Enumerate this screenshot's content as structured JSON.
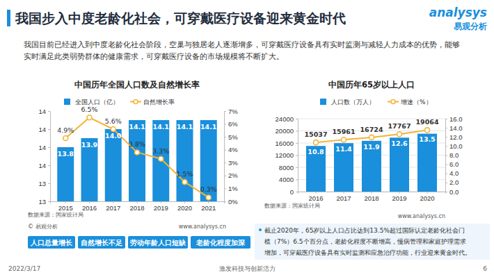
{
  "page": {
    "title": "我国步入中度老龄化社会，可穿戴医疗设备迎来黄金时代",
    "logo_en": "analysys",
    "logo_cn": "易观分析",
    "intro": [
      "我国目前已经进入到中度老龄化社会阶段，空巢与独居老人逐渐增多，可穿戴医疗设备具有实时监测与减轻人力成本的优势，能够",
      "实时满足此类弱势群体的健康需求，可穿戴医疗设备的市场规模将不断扩大。"
    ],
    "tags": [
      "人口总量增长",
      "自然增长不足",
      "劳动年龄人口短缺",
      "老龄化程度加深"
    ],
    "note": [
      "截止2020年，65岁以上人口占比达到13.5%超过国际认定老龄化社会门",
      "槛（7%）6.5个百分点，老龄化程度不断增高，慢病管理和家庭护理需求",
      "增加，可穿戴医疗设备具有实时监测和应急治疗功能，行业迎来黄金时代。"
    ],
    "footer_date": "2022/3/17",
    "footer_slogan": "激发科技与创新活力",
    "page_number": "6"
  },
  "chart_data": [
    {
      "type": "bar",
      "title": "中国历年全国人口数及自然增长率",
      "categories": [
        "2015",
        "2016",
        "2017",
        "2018",
        "2019",
        "2020",
        "2021"
      ],
      "series": [
        {
          "name": "全国人口（亿）",
          "type": "bar",
          "color": "#1a8fdc",
          "values": [
            13.8,
            13.9,
            14,
            14.1,
            14.1,
            14.1,
            14.1
          ],
          "value_labels": [
            "13.8",
            "13.9",
            "14.0",
            "14.1",
            "14.1",
            "14.1",
            "14.1"
          ]
        },
        {
          "name": "自然增长率",
          "type": "line",
          "axis": "y2",
          "color": "#f5b335",
          "marker": "circle",
          "values": [
            4.9,
            6.5,
            5.6,
            3.8,
            3.3,
            1.5,
            0.3
          ],
          "value_labels": [
            "4.9%",
            "6.5%",
            "5.6%",
            "3.8%",
            "3.3%",
            "1.5%",
            "0.3%"
          ]
        }
      ],
      "ylim": [
        13.2,
        14.2
      ],
      "yticks": [
        {
          "value": 13.2,
          "label": "13"
        },
        {
          "value": 13.4,
          "label": "13"
        },
        {
          "value": 13.6,
          "label": "14"
        },
        {
          "value": 13.8,
          "label": "14"
        },
        {
          "value": 14,
          "label": "14"
        },
        {
          "value": 14.2,
          "label": "14"
        }
      ],
      "y2lim": [
        0,
        7
      ],
      "y2ticks": [
        {
          "value": 0,
          "label": "0%"
        },
        {
          "value": 1,
          "label": "1%"
        },
        {
          "value": 2,
          "label": "2%"
        },
        {
          "value": 3,
          "label": "3%"
        },
        {
          "value": 4,
          "label": "4%"
        },
        {
          "value": 5,
          "label": "5%"
        },
        {
          "value": 6,
          "label": "6%"
        },
        {
          "value": 7,
          "label": "7%"
        }
      ],
      "grid": false,
      "data_labels": true,
      "legend": "top",
      "source": "数据来源：国家统计局",
      "copyright": "© 易观分析",
      "website": "www.analysys.cn"
    },
    {
      "type": "bar",
      "title": "中国历年65岁以上人口",
      "categories": [
        "2016",
        "2017",
        "2018",
        "2019",
        "2020"
      ],
      "series": [
        {
          "name": "人口数（万人）",
          "type": "bar",
          "color": "#1a8fdc",
          "values": [
            15037,
            15961,
            16724,
            17767,
            19064
          ]
        },
        {
          "name": "增速（%）",
          "type": "line",
          "axis": "y2",
          "color": "#f5b335",
          "marker": "circle",
          "values": [
            10.8,
            11.4,
            11.9,
            12.6,
            13.5
          ]
        }
      ],
      "ylim": [
        0,
        24000
      ],
      "yticks": [
        0,
        4000,
        8000,
        12000,
        16000,
        20000,
        24000
      ],
      "y2lim": [
        0,
        16
      ],
      "y2ticks": [
        {
          "value": 0,
          "label": "0.0"
        },
        {
          "value": 2,
          "label": "2.0"
        },
        {
          "value": 4,
          "label": "4.0"
        },
        {
          "value": 6,
          "label": "6.0"
        },
        {
          "value": 8,
          "label": "8.0"
        },
        {
          "value": 10,
          "label": "10.0"
        },
        {
          "value": 12,
          "label": "12.0"
        },
        {
          "value": 14,
          "label": "14.0"
        },
        {
          "value": 16,
          "label": "16.0"
        }
      ],
      "grid": true,
      "data_labels": true,
      "legend": "top",
      "source": "数据来源：国家统计局",
      "website": "www.analysys.cn"
    }
  ]
}
